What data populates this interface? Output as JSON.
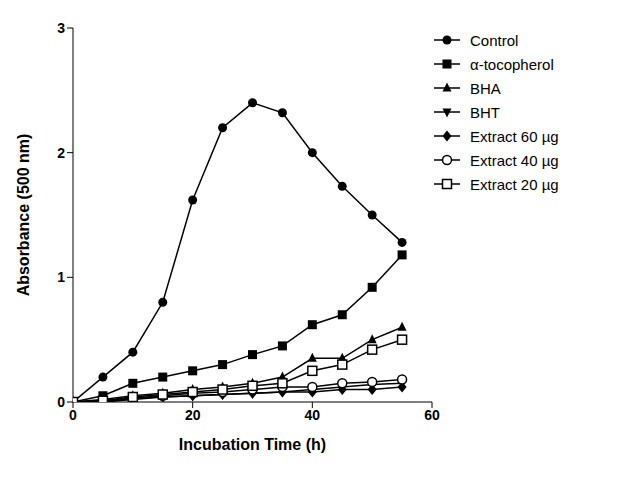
{
  "chart_data": {
    "type": "line",
    "x_label": "Incubation Time (h)",
    "y_label": "Absorbance (500 nm)",
    "x": [
      0,
      5,
      10,
      15,
      20,
      25,
      30,
      35,
      40,
      45,
      50,
      55
    ],
    "xlim": [
      0,
      60
    ],
    "xticks": [
      0,
      20,
      40,
      60
    ],
    "ylim": [
      0,
      3
    ],
    "yticks": [
      0,
      1,
      2,
      3
    ],
    "grid": false,
    "legend": "right",
    "series": [
      {
        "name": "Control",
        "color": "#000000",
        "marker": "circle",
        "values": [
          0,
          0.2,
          0.4,
          0.8,
          1.62,
          2.2,
          2.4,
          2.32,
          2.0,
          1.73,
          1.5,
          1.28
        ]
      },
      {
        "name": "α-tocopherol",
        "color": "#000000",
        "marker": "square",
        "values": [
          0,
          0.05,
          0.15,
          0.2,
          0.25,
          0.3,
          0.38,
          0.45,
          0.62,
          0.7,
          0.92,
          1.18
        ]
      },
      {
        "name": "BHA",
        "color": "#000000",
        "marker": "triangle",
        "values": [
          0,
          0.02,
          0.05,
          0.07,
          0.1,
          0.12,
          0.15,
          0.2,
          0.35,
          0.35,
          0.5,
          0.6
        ]
      },
      {
        "name": "BHT",
        "color": "#000000",
        "marker": "triangle-down",
        "values": [
          0,
          0.01,
          0.03,
          0.04,
          0.05,
          0.06,
          0.07,
          0.08,
          0.1,
          0.12,
          0.14,
          0.15
        ]
      },
      {
        "name": "Extract 60 µg",
        "color": "#000000",
        "marker": "diamond",
        "values": [
          0,
          0,
          0.02,
          0.04,
          0.05,
          0.06,
          0.07,
          0.08,
          0.08,
          0.1,
          0.1,
          0.12
        ]
      },
      {
        "name": "Extract 40 µg",
        "color": "#000000",
        "marker": "circle-open",
        "values": [
          0,
          0,
          0.03,
          0.05,
          0.07,
          0.08,
          0.1,
          0.12,
          0.12,
          0.15,
          0.16,
          0.18
        ]
      },
      {
        "name": "Extract 20  µg",
        "color": "#000000",
        "marker": "square-open",
        "values": [
          0,
          0.01,
          0.04,
          0.06,
          0.08,
          0.1,
          0.13,
          0.15,
          0.25,
          0.3,
          0.42,
          0.5
        ]
      }
    ]
  }
}
